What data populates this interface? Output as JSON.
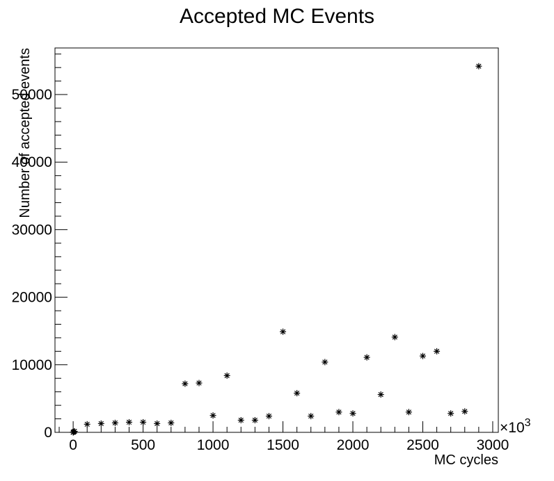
{
  "chart_data": {
    "type": "scatter",
    "title": "Accepted MC Events",
    "xlabel": "MC cycles",
    "ylabel": "Number of accepted events",
    "x_multiplier_label": "×10",
    "x_multiplier_exponent": "3",
    "xlim": [
      -130,
      3040
    ],
    "ylim": [
      0,
      56900
    ],
    "x_ticks": [
      0,
      500,
      1000,
      1500,
      2000,
      2500,
      3000
    ],
    "y_ticks": [
      0,
      10000,
      20000,
      30000,
      40000,
      50000
    ],
    "marker": "*",
    "grid": false,
    "points": [
      {
        "x": 0,
        "y": 0
      },
      {
        "x": 0,
        "y": 10
      },
      {
        "x": 1,
        "y": 20
      },
      {
        "x": 2,
        "y": 40
      },
      {
        "x": 5,
        "y": 80
      },
      {
        "x": 10,
        "y": 150
      },
      {
        "x": 100,
        "y": 1200
      },
      {
        "x": 200,
        "y": 1300
      },
      {
        "x": 300,
        "y": 1400
      },
      {
        "x": 400,
        "y": 1500
      },
      {
        "x": 500,
        "y": 1500
      },
      {
        "x": 600,
        "y": 1300
      },
      {
        "x": 700,
        "y": 1400
      },
      {
        "x": 800,
        "y": 7200
      },
      {
        "x": 900,
        "y": 7300
      },
      {
        "x": 1000,
        "y": 2500
      },
      {
        "x": 1100,
        "y": 8400
      },
      {
        "x": 1200,
        "y": 1800
      },
      {
        "x": 1300,
        "y": 1800
      },
      {
        "x": 1400,
        "y": 2400
      },
      {
        "x": 1500,
        "y": 14900
      },
      {
        "x": 1600,
        "y": 5800
      },
      {
        "x": 1700,
        "y": 2400
      },
      {
        "x": 1800,
        "y": 10400
      },
      {
        "x": 1900,
        "y": 3000
      },
      {
        "x": 2000,
        "y": 2800
      },
      {
        "x": 2100,
        "y": 11100
      },
      {
        "x": 2200,
        "y": 5600
      },
      {
        "x": 2300,
        "y": 14100
      },
      {
        "x": 2400,
        "y": 3000
      },
      {
        "x": 2500,
        "y": 11300
      },
      {
        "x": 2600,
        "y": 12000
      },
      {
        "x": 2700,
        "y": 2800
      },
      {
        "x": 2800,
        "y": 3100
      },
      {
        "x": 2900,
        "y": 54200
      }
    ]
  }
}
